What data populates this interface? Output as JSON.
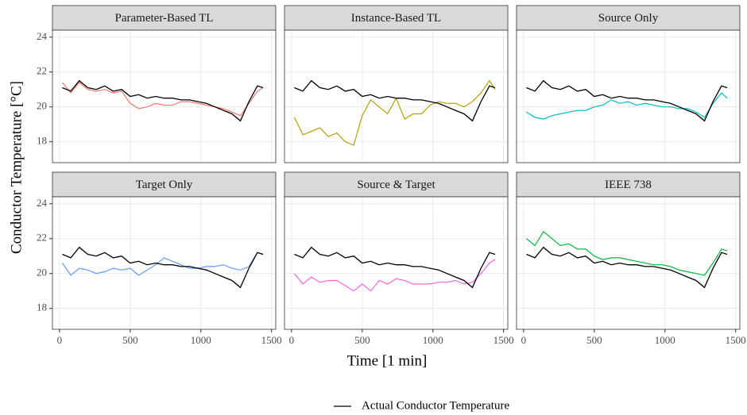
{
  "chart_data": {
    "type": "line",
    "xlabel": "Time [1 min]",
    "ylabel": "Conductor Temperature [°C]",
    "xlim": [
      -50,
      1530
    ],
    "xticks": [
      0,
      500,
      1000,
      1500
    ],
    "ylim": [
      16.8,
      24.4
    ],
    "yticks": [
      18,
      20,
      22,
      24
    ],
    "grid": true,
    "legend_position": "bottom",
    "x": [
      20,
      80,
      140,
      200,
      260,
      320,
      380,
      440,
      500,
      560,
      620,
      680,
      740,
      800,
      860,
      920,
      980,
      1040,
      1100,
      1160,
      1220,
      1280,
      1340,
      1400,
      1440
    ],
    "reference": {
      "name": "Actual Conductor Temperature",
      "color": "#000000",
      "values": [
        21.1,
        20.9,
        21.5,
        21.1,
        21.0,
        21.2,
        20.9,
        21.0,
        20.6,
        20.7,
        20.5,
        20.6,
        20.5,
        20.5,
        20.4,
        20.4,
        20.3,
        20.2,
        20.0,
        19.8,
        19.6,
        19.2,
        20.3,
        21.2,
        21.1
      ]
    },
    "panels": [
      {
        "title": "Parameter-Based TL",
        "color": "#f8766d",
        "values": [
          21.4,
          20.8,
          21.4,
          21.0,
          20.9,
          21.0,
          20.8,
          20.9,
          20.2,
          19.9,
          20.0,
          20.2,
          20.1,
          20.1,
          20.3,
          20.3,
          20.2,
          20.1,
          20.0,
          19.9,
          19.7,
          19.5,
          20.2,
          20.9,
          21.1
        ]
      },
      {
        "title": "Instance-Based TL",
        "color": "#b79f00",
        "values": [
          19.4,
          18.4,
          18.6,
          18.8,
          18.3,
          18.5,
          18.0,
          17.8,
          19.5,
          20.4,
          20.0,
          19.6,
          20.5,
          19.3,
          19.6,
          19.6,
          20.1,
          20.3,
          20.2,
          20.2,
          20.0,
          20.3,
          20.8,
          21.5,
          21.0
        ]
      },
      {
        "title": "Source Only",
        "color": "#00bfc4",
        "values": [
          19.7,
          19.4,
          19.3,
          19.5,
          19.6,
          19.7,
          19.8,
          19.8,
          20.0,
          20.1,
          20.4,
          20.2,
          20.3,
          20.1,
          20.2,
          20.1,
          20.0,
          20.0,
          19.9,
          19.9,
          19.7,
          19.4,
          20.2,
          20.8,
          20.5
        ]
      },
      {
        "title": "Target Only",
        "color": "#619cff",
        "values": [
          20.6,
          19.9,
          20.3,
          20.2,
          20.0,
          20.1,
          20.3,
          20.2,
          20.3,
          19.9,
          20.2,
          20.5,
          20.9,
          20.7,
          20.5,
          20.3,
          20.3,
          20.4,
          20.4,
          20.5,
          20.3,
          20.2,
          20.4,
          21.2,
          21.1
        ]
      },
      {
        "title": "Source & Target",
        "color": "#f564e3",
        "values": [
          20.0,
          19.4,
          19.8,
          19.5,
          19.6,
          19.6,
          19.3,
          19.0,
          19.4,
          19.0,
          19.6,
          19.4,
          19.7,
          19.6,
          19.4,
          19.4,
          19.4,
          19.5,
          19.5,
          19.6,
          19.4,
          19.5,
          20.0,
          20.6,
          20.8
        ]
      },
      {
        "title": "IEEE 738",
        "color": "#00ba38",
        "values": [
          22.0,
          21.6,
          22.4,
          22.0,
          21.6,
          21.7,
          21.4,
          21.4,
          21.0,
          20.8,
          20.9,
          20.9,
          20.8,
          20.7,
          20.6,
          20.5,
          20.5,
          20.4,
          20.2,
          20.1,
          20.0,
          19.9,
          20.6,
          21.4,
          21.3
        ]
      }
    ]
  }
}
